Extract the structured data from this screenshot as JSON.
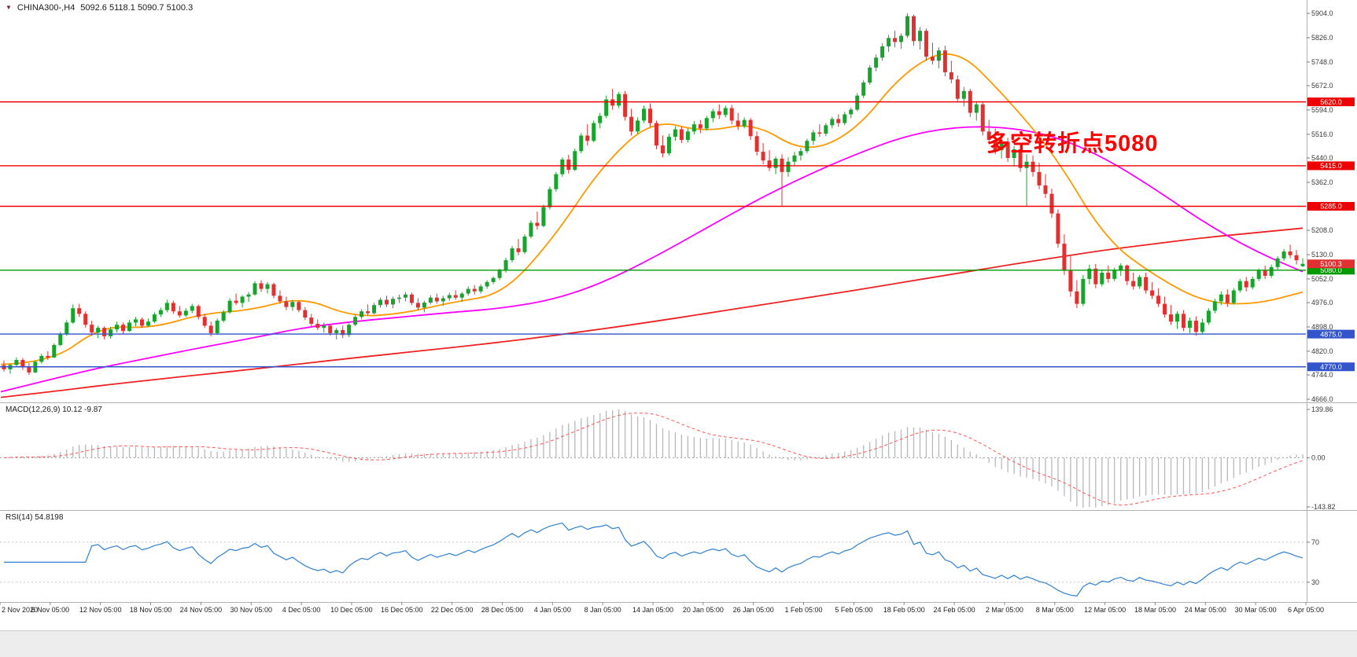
{
  "header": {
    "icon": "▼",
    "symbol_period": "CHINA300-,H4",
    "ohlc": "5092.6 5118.1 5090.7 5100.3"
  },
  "annotation": {
    "text": "多空转折点5080",
    "color": "#ff0000"
  },
  "chart_data": {
    "type": "candlestick",
    "symbol": "CHINA300-",
    "timeframe": "H4",
    "title": "CHINA300-,H4 5092.6 5118.1 5090.7 5100.3",
    "last_ohlc": {
      "open": 5092.6,
      "high": 5118.1,
      "low": 5090.7,
      "close": 5100.3
    },
    "colors": {
      "up": "#18a32c",
      "down": "#e03030",
      "ma_fast": "#ff9900",
      "ma_mid": "#ff00ff",
      "ma_slow": "#ee2222",
      "macd_hist": "#b8b8b8",
      "macd_signal": "#ff5555",
      "rsi": "#2f80d0"
    },
    "y_axis": {
      "min": 4666.0,
      "max": 5904.0,
      "ticks": [
        5904.0,
        5826.0,
        5748.0,
        5672.0,
        5594.0,
        5516.0,
        5440.0,
        5362.0,
        5284.0,
        5208.0,
        5130.0,
        5052.0,
        4976.0,
        4898.0,
        4820.0,
        4744.0,
        4666.0
      ]
    },
    "x_labels": [
      "2 Nov 2020",
      "6 Nov 05:00",
      "12 Nov 05:00",
      "18 Nov 05:00",
      "24 Nov 05:00",
      "30 Nov 05:00",
      "4 Dec 05:00",
      "10 Dec 05:00",
      "16 Dec 05:00",
      "22 Dec 05:00",
      "28 Dec 05:00",
      "4 Jan 05:00",
      "8 Jan 05:00",
      "14 Jan 05:00",
      "20 Jan 05:00",
      "26 Jan 05:00",
      "1 Feb 05:00",
      "5 Feb 05:00",
      "18 Feb 05:00",
      "24 Feb 05:00",
      "2 Mar 05:00",
      "8 Mar 05:00",
      "12 Mar 05:00",
      "18 Mar 05:00",
      "24 Mar 05:00",
      "30 Mar 05:00",
      "6 Apr 05:00"
    ],
    "h_lines": [
      {
        "value": 5620.0,
        "label": "5620.0",
        "color": "#ee0000"
      },
      {
        "value": 5415.0,
        "label": "5415.0",
        "color": "#ee0000"
      },
      {
        "value": 5285.0,
        "label": "5285.0",
        "color": "#ee0000"
      },
      {
        "value": 5080.0,
        "label": "5080.0",
        "color": "#009900"
      },
      {
        "value": 4875.0,
        "label": "4875.0",
        "color": "#3355cc"
      },
      {
        "value": 4770.0,
        "label": "4770.0",
        "color": "#3355cc"
      }
    ],
    "current_price": {
      "value": 5100.3,
      "label": "5100.3",
      "color": "#e03030"
    },
    "overlays": {
      "ma_fast_orange": [
        4778,
        4782,
        4902,
        4893,
        4940,
        4952,
        4995,
        4930,
        4940,
        4978,
        5002,
        5180,
        5420,
        5565,
        5522,
        5555,
        5455,
        5520,
        5720,
        5800,
        5640,
        5450,
        5180,
        5060,
        4975,
        4970,
        5010
      ],
      "ma_mid_magenta": [
        4690,
        4730,
        4768,
        4800,
        4832,
        4862,
        4895,
        4915,
        4930,
        4945,
        4958,
        4985,
        5040,
        5120,
        5210,
        5300,
        5380,
        5450,
        5510,
        5540,
        5540,
        5510,
        5440,
        5340,
        5230,
        5140,
        5075
      ],
      "ma_slow_red": [
        4672,
        4690,
        4710,
        4728,
        4745,
        4762,
        4780,
        4798,
        4815,
        4832,
        4850,
        4870,
        4892,
        4915,
        4940,
        4965,
        4990,
        5015,
        5042,
        5068,
        5095,
        5120,
        5145,
        5165,
        5185,
        5200,
        5215
      ]
    },
    "indicators": [
      {
        "name": "MACD",
        "label": "MACD(12,26,9) 10.12 -9.87",
        "params": [
          12,
          26,
          9
        ],
        "values_display": [
          10.12,
          -9.87
        ],
        "axis": {
          "max": 139.86,
          "zero": 0.0,
          "min": -143.82
        }
      },
      {
        "name": "RSI",
        "label": "RSI(14) 54.8198",
        "period": 14,
        "value_display": 54.8198,
        "levels": [
          70,
          30
        ]
      }
    ],
    "candles": [
      [
        4775,
        4790,
        4755,
        4762
      ],
      [
        4762,
        4780,
        4748,
        4776
      ],
      [
        4776,
        4800,
        4770,
        4792
      ],
      [
        4792,
        4798,
        4760,
        4768
      ],
      [
        4768,
        4782,
        4744,
        4752
      ],
      [
        4752,
        4790,
        4750,
        4786
      ],
      [
        4786,
        4812,
        4780,
        4805
      ],
      [
        4805,
        4820,
        4792,
        4800
      ],
      [
        4800,
        4845,
        4798,
        4840
      ],
      [
        4840,
        4882,
        4836,
        4875
      ],
      [
        4875,
        4920,
        4870,
        4912
      ],
      [
        4912,
        4970,
        4908,
        4958
      ],
      [
        4958,
        4972,
        4930,
        4940
      ],
      [
        4940,
        4948,
        4896,
        4905
      ],
      [
        4905,
        4918,
        4870,
        4880
      ],
      [
        4880,
        4902,
        4862,
        4895
      ],
      [
        4895,
        4900,
        4858,
        4868
      ],
      [
        4868,
        4898,
        4860,
        4890
      ],
      [
        4890,
        4915,
        4880,
        4905
      ],
      [
        4905,
        4912,
        4876,
        4885
      ],
      [
        4885,
        4920,
        4882,
        4912
      ],
      [
        4912,
        4930,
        4900,
        4922
      ],
      [
        4922,
        4928,
        4895,
        4902
      ],
      [
        4902,
        4925,
        4898,
        4915
      ],
      [
        4915,
        4945,
        4910,
        4938
      ],
      [
        4938,
        4960,
        4930,
        4952
      ],
      [
        4952,
        4985,
        4945,
        4975
      ],
      [
        4975,
        4982,
        4940,
        4948
      ],
      [
        4948,
        4965,
        4928,
        4935
      ],
      [
        4935,
        4958,
        4930,
        4950
      ],
      [
        4950,
        4972,
        4942,
        4965
      ],
      [
        4965,
        4970,
        4922,
        4930
      ],
      [
        4930,
        4940,
        4895,
        4902
      ],
      [
        4902,
        4915,
        4868,
        4878
      ],
      [
        4878,
        4925,
        4872,
        4918
      ],
      [
        4918,
        4952,
        4912,
        4945
      ],
      [
        4945,
        4990,
        4940,
        4982
      ],
      [
        4982,
        5005,
        4968,
        4975
      ],
      [
        4975,
        5000,
        4960,
        4995
      ],
      [
        4995,
        5010,
        4978,
        5002
      ],
      [
        5002,
        5045,
        4998,
        5038
      ],
      [
        5038,
        5048,
        5010,
        5020
      ],
      [
        5020,
        5042,
        5005,
        5035
      ],
      [
        5035,
        5040,
        4990,
        4998
      ],
      [
        4998,
        5015,
        4972,
        4980
      ],
      [
        4980,
        4995,
        4952,
        4962
      ],
      [
        4962,
        4985,
        4950,
        4978
      ],
      [
        4978,
        4982,
        4945,
        4952
      ],
      [
        4952,
        4962,
        4920,
        4928
      ],
      [
        4928,
        4940,
        4900,
        4908
      ],
      [
        4908,
        4922,
        4888,
        4895
      ],
      [
        4895,
        4912,
        4880,
        4902
      ],
      [
        4902,
        4908,
        4870,
        4878
      ],
      [
        4878,
        4895,
        4858,
        4888
      ],
      [
        4888,
        4902,
        4862,
        4872
      ],
      [
        4872,
        4910,
        4865,
        4905
      ],
      [
        4905,
        4938,
        4900,
        4930
      ],
      [
        4930,
        4955,
        4922,
        4948
      ],
      [
        4948,
        4970,
        4935,
        4942
      ],
      [
        4942,
        4975,
        4938,
        4968
      ],
      [
        4968,
        4992,
        4960,
        4985
      ],
      [
        4985,
        4998,
        4962,
        4970
      ],
      [
        4970,
        4995,
        4958,
        4988
      ],
      [
        4988,
        5002,
        4975,
        4992
      ],
      [
        4992,
        5010,
        4980,
        5002
      ],
      [
        5002,
        5008,
        4968,
        4975
      ],
      [
        4975,
        4990,
        4952,
        4960
      ],
      [
        4960,
        4982,
        4945,
        4976
      ],
      [
        4976,
        5000,
        4970,
        4992
      ],
      [
        4992,
        5005,
        4972,
        4980
      ],
      [
        4980,
        4998,
        4965,
        4990
      ],
      [
        4990,
        5008,
        4982,
        5000
      ],
      [
        5000,
        5015,
        4985,
        4992
      ],
      [
        4992,
        5010,
        4978,
        5005
      ],
      [
        5005,
        5028,
        4998,
        5020
      ],
      [
        5020,
        5032,
        5002,
        5012
      ],
      [
        5012,
        5035,
        5005,
        5028
      ],
      [
        5028,
        5048,
        5020,
        5042
      ],
      [
        5042,
        5060,
        5035,
        5055
      ],
      [
        5055,
        5085,
        5048,
        5078
      ],
      [
        5078,
        5120,
        5072,
        5112
      ],
      [
        5112,
        5158,
        5105,
        5150
      ],
      [
        5150,
        5180,
        5128,
        5138
      ],
      [
        5138,
        5195,
        5132,
        5188
      ],
      [
        5188,
        5240,
        5182,
        5232
      ],
      [
        5232,
        5268,
        5210,
        5222
      ],
      [
        5222,
        5290,
        5218,
        5282
      ],
      [
        5282,
        5348,
        5275,
        5340
      ],
      [
        5340,
        5395,
        5332,
        5388
      ],
      [
        5388,
        5442,
        5380,
        5435
      ],
      [
        5435,
        5450,
        5390,
        5402
      ],
      [
        5402,
        5470,
        5398,
        5462
      ],
      [
        5462,
        5520,
        5455,
        5512
      ],
      [
        5512,
        5548,
        5480,
        5495
      ],
      [
        5495,
        5560,
        5490,
        5552
      ],
      [
        5552,
        5585,
        5535,
        5575
      ],
      [
        5575,
        5640,
        5568,
        5628
      ],
      [
        5628,
        5662,
        5595,
        5608
      ],
      [
        5608,
        5652,
        5600,
        5645
      ],
      [
        5645,
        5655,
        5560,
        5572
      ],
      [
        5572,
        5598,
        5512,
        5525
      ],
      [
        5525,
        5570,
        5518,
        5560
      ],
      [
        5560,
        5608,
        5552,
        5598
      ],
      [
        5598,
        5615,
        5540,
        5552
      ],
      [
        5552,
        5560,
        5468,
        5480
      ],
      [
        5480,
        5512,
        5442,
        5455
      ],
      [
        5455,
        5518,
        5448,
        5508
      ],
      [
        5508,
        5542,
        5495,
        5532
      ],
      [
        5532,
        5540,
        5488,
        5498
      ],
      [
        5498,
        5535,
        5490,
        5525
      ],
      [
        5525,
        5558,
        5515,
        5548
      ],
      [
        5548,
        5562,
        5520,
        5535
      ],
      [
        5535,
        5575,
        5528,
        5568
      ],
      [
        5568,
        5598,
        5555,
        5590
      ],
      [
        5590,
        5612,
        5565,
        5578
      ],
      [
        5578,
        5608,
        5570,
        5600
      ],
      [
        5600,
        5610,
        5548,
        5560
      ],
      [
        5560,
        5585,
        5530,
        5542
      ],
      [
        5542,
        5570,
        5535,
        5562
      ],
      [
        5562,
        5568,
        5498,
        5510
      ],
      [
        5510,
        5525,
        5448,
        5460
      ],
      [
        5460,
        5488,
        5420,
        5432
      ],
      [
        5432,
        5465,
        5398,
        5408
      ],
      [
        5408,
        5445,
        5388,
        5438
      ],
      [
        5438,
        5452,
        5285,
        5395
      ],
      [
        5395,
        5442,
        5380,
        5428
      ],
      [
        5428,
        5460,
        5415,
        5448
      ],
      [
        5448,
        5472,
        5432,
        5462
      ],
      [
        5462,
        5502,
        5455,
        5495
      ],
      [
        5495,
        5530,
        5482,
        5522
      ],
      [
        5522,
        5548,
        5508,
        5518
      ],
      [
        5518,
        5552,
        5510,
        5545
      ],
      [
        5545,
        5572,
        5535,
        5565
      ],
      [
        5565,
        5580,
        5540,
        5552
      ],
      [
        5552,
        5588,
        5545,
        5580
      ],
      [
        5580,
        5602,
        5568,
        5595
      ],
      [
        5595,
        5648,
        5590,
        5640
      ],
      [
        5640,
        5690,
        5632,
        5682
      ],
      [
        5682,
        5738,
        5675,
        5730
      ],
      [
        5730,
        5772,
        5718,
        5762
      ],
      [
        5762,
        5808,
        5752,
        5798
      ],
      [
        5798,
        5835,
        5780,
        5825
      ],
      [
        5825,
        5848,
        5795,
        5812
      ],
      [
        5812,
        5840,
        5790,
        5832
      ],
      [
        5832,
        5904,
        5825,
        5895
      ],
      [
        5895,
        5900,
        5800,
        5815
      ],
      [
        5815,
        5860,
        5788,
        5848
      ],
      [
        5848,
        5855,
        5752,
        5765
      ],
      [
        5765,
        5810,
        5740,
        5752
      ],
      [
        5752,
        5795,
        5728,
        5785
      ],
      [
        5785,
        5800,
        5702,
        5715
      ],
      [
        5715,
        5752,
        5680,
        5692
      ],
      [
        5692,
        5705,
        5618,
        5630
      ],
      [
        5630,
        5668,
        5605,
        5655
      ],
      [
        5655,
        5662,
        5572,
        5585
      ],
      [
        5585,
        5622,
        5560,
        5612
      ],
      [
        5612,
        5618,
        5512,
        5525
      ],
      [
        5525,
        5562,
        5488,
        5498
      ],
      [
        5498,
        5535,
        5452,
        5465
      ],
      [
        5465,
        5502,
        5438,
        5492
      ],
      [
        5492,
        5505,
        5428,
        5440
      ],
      [
        5440,
        5478,
        5415,
        5468
      ],
      [
        5468,
        5482,
        5395,
        5408
      ],
      [
        5408,
        5452,
        5285,
        5428
      ],
      [
        5428,
        5448,
        5380,
        5395
      ],
      [
        5395,
        5425,
        5340,
        5352
      ],
      [
        5352,
        5388,
        5312,
        5325
      ],
      [
        5325,
        5342,
        5248,
        5262
      ],
      [
        5262,
        5275,
        5152,
        5165
      ],
      [
        5165,
        5195,
        5065,
        5078
      ],
      [
        5078,
        5125,
        4995,
        5012
      ],
      [
        5012,
        5048,
        4958,
        4972
      ],
      [
        4972,
        5065,
        4965,
        5052
      ],
      [
        5052,
        5098,
        5035,
        5085
      ],
      [
        5085,
        5100,
        5022,
        5035
      ],
      [
        5035,
        5082,
        5028,
        5072
      ],
      [
        5072,
        5095,
        5040,
        5052
      ],
      [
        5052,
        5088,
        5045,
        5080
      ],
      [
        5080,
        5102,
        5062,
        5095
      ],
      [
        5095,
        5098,
        5032,
        5045
      ],
      [
        5045,
        5072,
        5018,
        5028
      ],
      [
        5028,
        5065,
        5020,
        5058
      ],
      [
        5058,
        5072,
        5005,
        5015
      ],
      [
        5015,
        5042,
        4988,
        4998
      ],
      [
        4998,
        5022,
        4962,
        4972
      ],
      [
        4972,
        4995,
        4928,
        4938
      ],
      [
        4938,
        4968,
        4905,
        4915
      ],
      [
        4915,
        4948,
        4892,
        4940
      ],
      [
        4940,
        4952,
        4885,
        4895
      ],
      [
        4895,
        4928,
        4878,
        4918
      ],
      [
        4918,
        4932,
        4870,
        4882
      ],
      [
        4882,
        4925,
        4875,
        4912
      ],
      [
        4912,
        4958,
        4905,
        4950
      ],
      [
        4950,
        4988,
        4942,
        4980
      ],
      [
        4980,
        5012,
        4968,
        5002
      ],
      [
        5002,
        5018,
        4962,
        4975
      ],
      [
        4975,
        5022,
        4970,
        5015
      ],
      [
        5015,
        5052,
        5008,
        5045
      ],
      [
        5045,
        5058,
        5012,
        5025
      ],
      [
        5025,
        5060,
        5018,
        5052
      ],
      [
        5052,
        5085,
        5045,
        5078
      ],
      [
        5078,
        5095,
        5052,
        5062
      ],
      [
        5062,
        5098,
        5055,
        5090
      ],
      [
        5090,
        5125,
        5082,
        5118
      ],
      [
        5118,
        5148,
        5110,
        5140
      ],
      [
        5140,
        5162,
        5118,
        5128
      ],
      [
        5128,
        5145,
        5098,
        5112
      ],
      [
        5092.6,
        5118.1,
        5090.7,
        5100.3
      ]
    ]
  }
}
